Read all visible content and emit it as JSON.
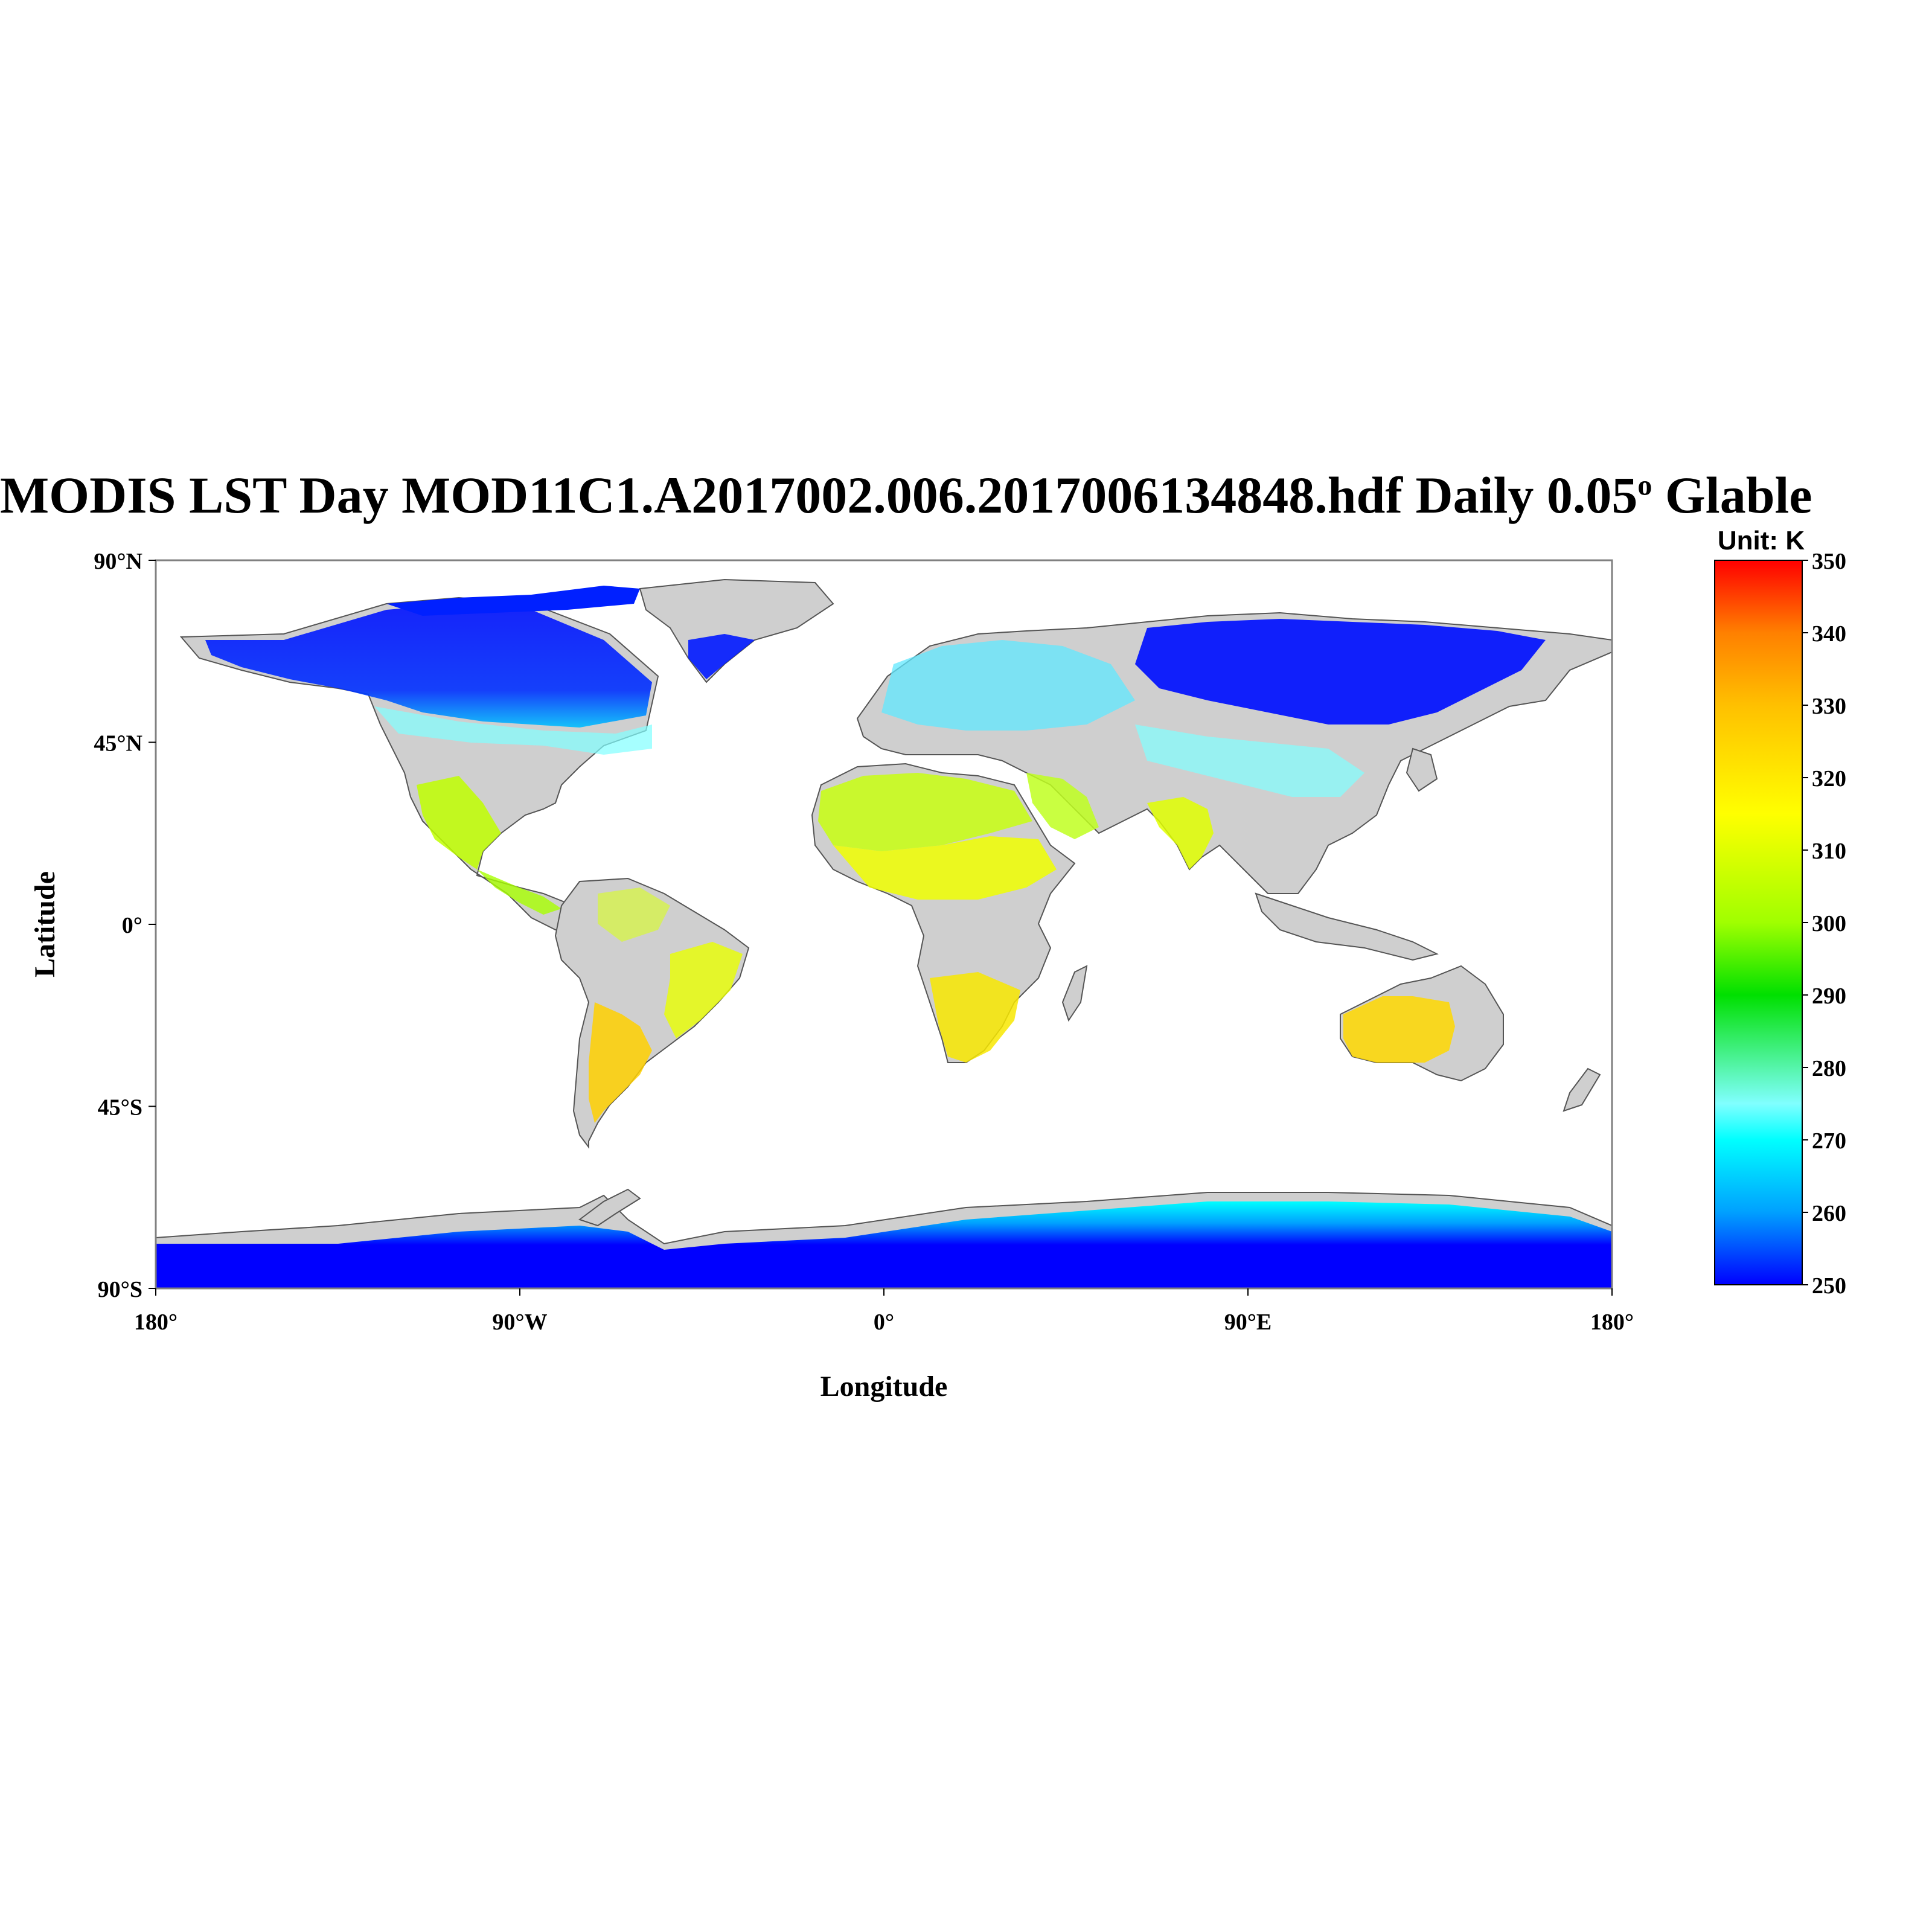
{
  "title": {
    "text": "MODIS LST Day MOD11C1.A2017002.006.2017006134848.hdf Daily 0.05",
    "degree_sup": "o",
    "suffix": " Glable"
  },
  "map": {
    "projection": "equirectangular",
    "lon_range": [
      -180,
      180
    ],
    "lat_range": [
      -90,
      90
    ],
    "xlabel": "Longitude",
    "ylabel": "Latitude",
    "x_ticks": [
      {
        "lon": -180,
        "label": "180°"
      },
      {
        "lon": -90,
        "label": "90°W"
      },
      {
        "lon": 0,
        "label": "0°"
      },
      {
        "lon": 90,
        "label": "90°E"
      },
      {
        "lon": 180,
        "label": "180°"
      }
    ],
    "y_ticks": [
      {
        "lat": 90,
        "label": "90°N"
      },
      {
        "lat": 45,
        "label": "45°N"
      },
      {
        "lat": 0,
        "label": "0°"
      },
      {
        "lat": -45,
        "label": "45°S"
      },
      {
        "lat": -90,
        "label": "90°S"
      }
    ],
    "no_data_color": "#cfcfcf",
    "ocean_color": "#ffffff"
  },
  "colorbar": {
    "unit_label": "Unit: K",
    "min": 250,
    "max": 350,
    "ticks": [
      "350",
      "340",
      "330",
      "320",
      "310",
      "300",
      "290",
      "280",
      "270",
      "260",
      "250"
    ],
    "colors": [
      "#0000ff",
      "#00a0ff",
      "#00ffff",
      "#80ffff",
      "#00e000",
      "#a0ff00",
      "#ffff00",
      "#ffc000",
      "#ff8000",
      "#ff0000"
    ]
  },
  "chart_data": {
    "type": "heatmap",
    "variable": "MODIS LST Day",
    "unit": "K",
    "value_range": [
      250,
      350
    ],
    "regions": [
      {
        "region": "Antarctica",
        "approx_K": 250
      },
      {
        "region": "Greenland",
        "approx_K": 250
      },
      {
        "region": "Northern Canada",
        "approx_K": 252
      },
      {
        "region": "Siberia",
        "approx_K": 250
      },
      {
        "region": "Europe",
        "approx_K": 270
      },
      {
        "region": "Mexico",
        "approx_K": 300
      },
      {
        "region": "Sahara",
        "approx_K": 305
      },
      {
        "region": "Horn of Africa",
        "approx_K": 318
      },
      {
        "region": "India",
        "approx_K": 305
      },
      {
        "region": "Southern Africa",
        "approx_K": 318
      },
      {
        "region": "Argentina",
        "approx_K": 325
      },
      {
        "region": "Australia",
        "approx_K": 322
      },
      {
        "region": "Amazon",
        "approx_K": 305
      }
    ]
  }
}
